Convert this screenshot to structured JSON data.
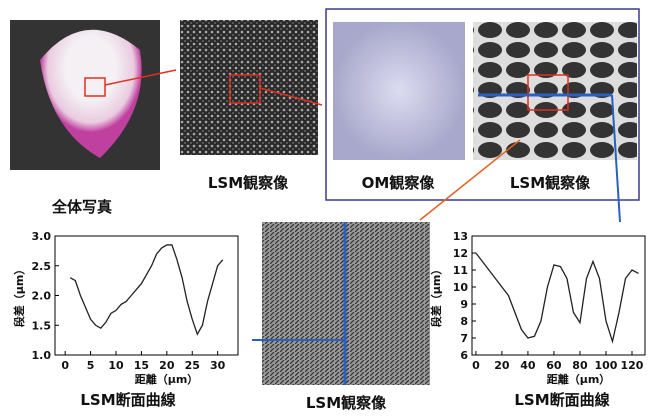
{
  "captions": {
    "photo": "全体写真",
    "lsm1": "LSM観察像",
    "om": "OM観察像",
    "lsm2": "LSM観察像",
    "lsm3": "LSM観察像",
    "profile_left": "LSM断面曲線",
    "profile_right": "LSM断面曲線"
  },
  "chart_data": [
    {
      "type": "line",
      "x_label": "距離（μm）",
      "y_label": "段差（μm）",
      "color": "#222222",
      "x": [
        1,
        2,
        3,
        4,
        5,
        6,
        7,
        8,
        9,
        10,
        11,
        12,
        13,
        14,
        15,
        16,
        17,
        18,
        19,
        20,
        21,
        22,
        23,
        24,
        25,
        26,
        27,
        28,
        29,
        30,
        31
      ],
      "values": [
        2.3,
        2.25,
        2.0,
        1.8,
        1.6,
        1.5,
        1.45,
        1.55,
        1.7,
        1.75,
        1.85,
        1.9,
        2.0,
        2.1,
        2.2,
        2.35,
        2.5,
        2.7,
        2.8,
        2.85,
        2.85,
        2.6,
        2.3,
        1.9,
        1.6,
        1.35,
        1.5,
        1.9,
        2.2,
        2.5,
        2.6
      ],
      "xlim": [
        -2,
        34
      ],
      "xticks": [
        0,
        5,
        10,
        15,
        20,
        25,
        30
      ],
      "ylim": [
        1,
        3
      ],
      "yticks": [
        {
          "value": 1,
          "label": "1.0"
        },
        {
          "value": 1.5,
          "label": "1.5"
        },
        {
          "value": 2,
          "label": "2.0"
        },
        {
          "value": 2.5,
          "label": "2.5"
        },
        {
          "value": 3,
          "label": "3.0"
        }
      ]
    },
    {
      "type": "line",
      "x_label": "距離（μm）",
      "y_label": "段差（μm）",
      "color": "#222222",
      "x": [
        0,
        5,
        10,
        15,
        20,
        25,
        30,
        35,
        40,
        45,
        50,
        55,
        60,
        65,
        70,
        75,
        80,
        85,
        90,
        95,
        100,
        105,
        110,
        115,
        120,
        125
      ],
      "values": [
        12,
        11.5,
        11,
        10.5,
        10,
        9.5,
        8.5,
        7.5,
        7,
        7.1,
        8,
        10,
        11.3,
        11.2,
        10.5,
        8.5,
        7.9,
        10.5,
        11.5,
        10.5,
        8,
        6.8,
        8.5,
        10.5,
        11,
        10.8
      ],
      "xlim": [
        -3,
        130
      ],
      "xticks": [
        0,
        20,
        40,
        60,
        80,
        100,
        120
      ],
      "ylim": [
        6,
        13
      ],
      "yticks": [
        6,
        7,
        8,
        9,
        10,
        11,
        12,
        13
      ]
    }
  ]
}
